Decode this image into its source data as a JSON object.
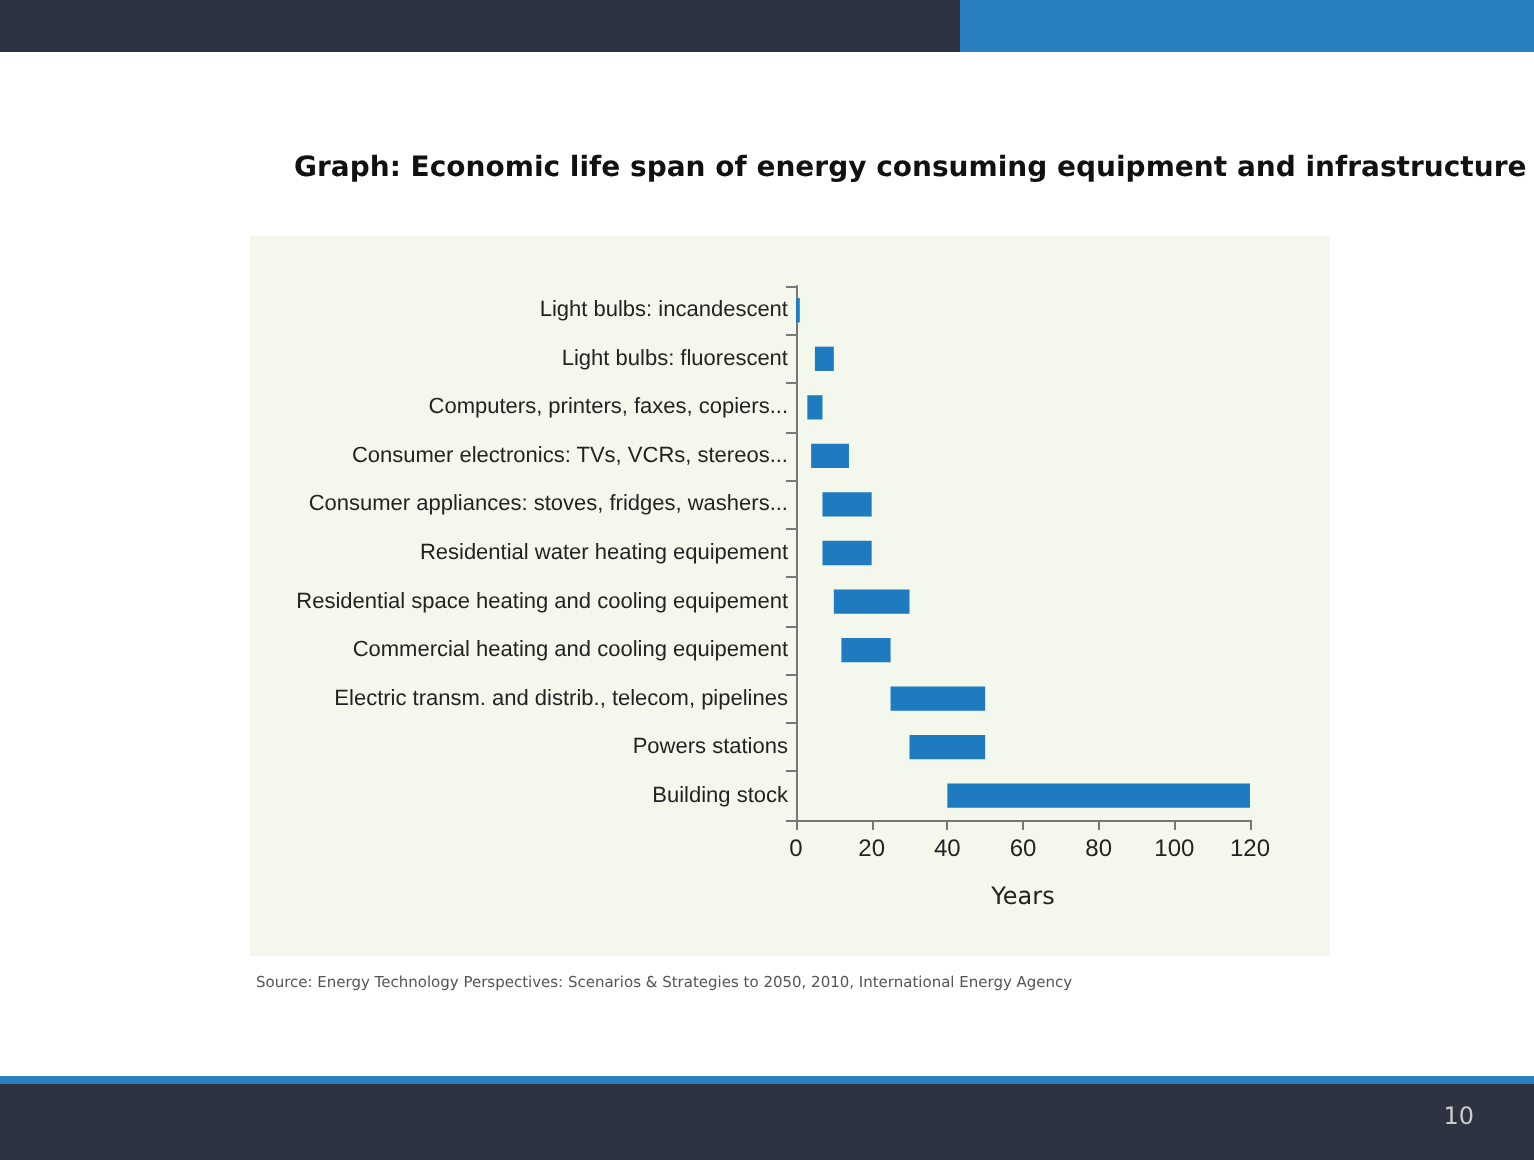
{
  "chart_data": {
    "type": "bar",
    "orientation": "horizontal",
    "title": "Graph: Economic life span of energy consuming equipment and infrastructure",
    "xlabel": "Years",
    "categories": [
      "Light bulbs: incandescent",
      "Light bulbs: fluorescent",
      "Computers, printers, faxes, copiers...",
      "Consumer electronics: TVs, VCRs, stereos...",
      "Consumer appliances: stoves, fridges, washers...",
      "Residential water heating equipement",
      "Residential space heating and cooling equipement",
      "Commercial heating and cooling equipement",
      "Electric transm. and distrib., telecom, pipelines",
      "Powers stations",
      "Building stock"
    ],
    "base": [
      0,
      5,
      3,
      4,
      7,
      7,
      10,
      12,
      25,
      30,
      40
    ],
    "values": [
      1,
      5,
      4,
      10,
      13,
      13,
      20,
      13,
      25,
      20,
      80
    ],
    "color": "#1f7bbf",
    "xlim": [
      0,
      120
    ],
    "xticks": [
      0,
      20,
      40,
      60,
      80,
      100,
      120
    ],
    "annotations": [
      "Source: Energy Technology Perspectives: Scenarios & Strategies to 2050, 2010, International Energy Agency",
      "10"
    ]
  }
}
